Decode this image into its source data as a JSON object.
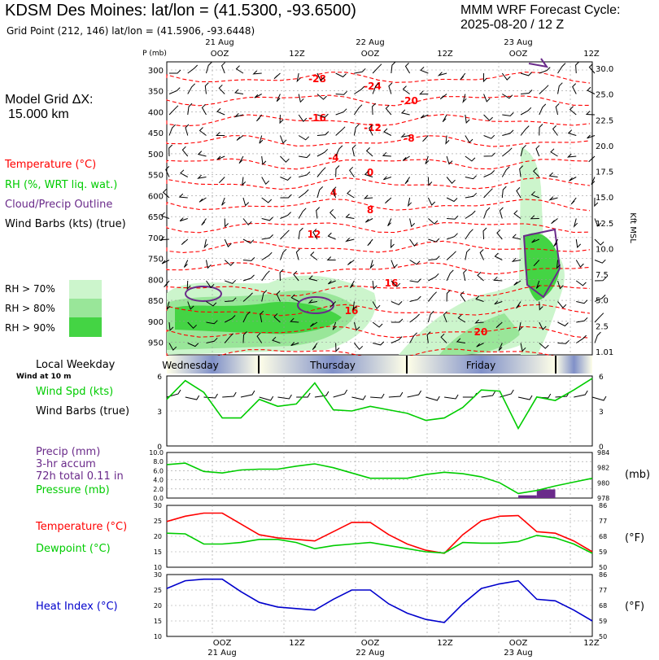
{
  "header": {
    "station": "KDSM Des Moines:  lat/lon = (41.5300, -93.6500)",
    "grid_point": "Grid Point (212, 146) lat/lon = (41.5906, -93.6448)",
    "model_cycle_line1": "MMM WRF Forecast Cycle:",
    "model_cycle_line2": "2025-08-20 / 12  Z"
  },
  "sidebar": {
    "grid_dx_label": "Model Grid ΔX:",
    "grid_dx_value": "15.000 km",
    "legend_temperature": "Temperature (°C)",
    "legend_rh": "RH (%, WRT liq. wat.)",
    "legend_cloud": "Cloud/Precip Outline",
    "legend_wind": "Wind Barbs (kts) (true)",
    "rh_70": "RH > 70%",
    "rh_80": "RH > 80%",
    "rh_90": "RH > 90%",
    "local_weekday": "Local Weekday",
    "wind_at_10m": "Wind at 10 m",
    "wind_spd_label": "Wind Spd (kts)",
    "wind_barbs_label": "Wind Barbs (true)",
    "precip_label": "Precip (mm)",
    "precip_accum": "3-hr accum",
    "precip_total": "72h total 0.11 in",
    "pressure_label": "Pressure (mb)",
    "temp_label": "Temperature (°C)",
    "dewpoint_label": "Dewpoint (°C)",
    "heat_index_label": "Heat Index (°C)",
    "mb_right": "(mb)",
    "degf_right_1": "(°F)",
    "degf_right_2": "(°F)"
  },
  "colors": {
    "temperature": "#ff0000",
    "rh_text": "#00cc00",
    "cloud": "#6a2a8a",
    "heat_index": "#0000cc",
    "rh70": "#ccf5cc",
    "rh80": "#99e699",
    "rh90": "#44d444",
    "precip_bar": "#6a2a8a"
  },
  "chart_data": [
    {
      "type": "heatmap",
      "panel": "cross-section",
      "p_label": "P (mb)",
      "alt_label": "Kft MSL",
      "top_time_labels": [
        "21 Aug",
        "OOZ",
        "12Z",
        "22 Aug",
        "OOZ",
        "12Z",
        "23 Aug",
        "OOZ",
        "12Z"
      ],
      "pressure_ticks": [
        "300",
        "350",
        "400",
        "450",
        "500",
        "550",
        "600",
        "650",
        "700",
        "750",
        "800",
        "850",
        "900",
        "950"
      ],
      "altitude_ticks": [
        "30.0",
        "25.0",
        "22.5",
        "20.0",
        "17.5",
        "15.0",
        "12.5",
        "10.0",
        "7.5",
        "5.0",
        "2.5",
        "1.01"
      ],
      "temperature_contour_labels": [
        "-28",
        "-24",
        "-20",
        "-16",
        "-12",
        "-8",
        "-4",
        "0",
        "4",
        "8",
        "12",
        "16",
        "16",
        "20"
      ],
      "weekday_labels": [
        "Wednesday",
        "Thursday",
        "Friday"
      ]
    },
    {
      "type": "line",
      "panel": "wind-speed",
      "ylim": [
        0,
        6
      ],
      "ticks": [
        "6",
        "3",
        "0"
      ],
      "values": [
        4.0,
        5.6,
        4.6,
        2.4,
        2.4,
        4.0,
        3.4,
        3.6,
        5.4,
        3.1,
        3.0,
        3.4,
        3.1,
        2.8,
        2.2,
        2.4,
        3.3,
        4.8,
        4.7,
        1.5,
        4.2,
        3.9,
        4.8,
        5.8
      ]
    },
    {
      "type": "line",
      "panel": "precip-pressure",
      "left_ticks": [
        "10.0",
        "8.0",
        "6.0",
        "4.0",
        "2.0",
        "0.0"
      ],
      "right_ticks": [
        "984",
        "982",
        "980",
        "978"
      ],
      "pressure_ylim": [
        978,
        984
      ],
      "pressure_mb": [
        982.4,
        982.6,
        981.5,
        981.3,
        981.7,
        981.8,
        981.8,
        982.2,
        982.5,
        982.0,
        981.3,
        980.6,
        980.6,
        980.6,
        981.1,
        981.4,
        981.2,
        980.8,
        980.0,
        978.6,
        979.0,
        979.6,
        980.1,
        980.6
      ],
      "precip_mm": [
        0,
        0,
        0,
        0,
        0,
        0,
        0,
        0,
        0,
        0,
        0,
        0,
        0,
        0,
        0,
        0,
        0,
        0,
        0,
        0.6,
        1.9,
        0,
        0,
        0
      ]
    },
    {
      "type": "line",
      "panel": "temperature-dewpoint",
      "left_ticks": [
        "30",
        "25",
        "20",
        "15",
        "10"
      ],
      "right_ticks": [
        "86",
        "77",
        "68",
        "59",
        "50"
      ],
      "ylim": [
        10,
        30
      ],
      "temperature_c": [
        24.8,
        26.5,
        27.5,
        27.5,
        24.0,
        20.5,
        19.5,
        19.0,
        18.5,
        21.5,
        24.5,
        24.5,
        20.5,
        17.5,
        15.5,
        14.5,
        20.5,
        25.0,
        26.5,
        26.7,
        21.5,
        21.0,
        18.5,
        15.0
      ],
      "dewpoint_c": [
        21.0,
        20.8,
        17.5,
        17.5,
        18.0,
        19.0,
        19.0,
        18.0,
        16.0,
        17.0,
        17.5,
        18.0,
        17.0,
        16.0,
        15.0,
        14.6,
        18.0,
        17.8,
        17.8,
        18.3,
        20.3,
        19.5,
        17.5,
        14.5
      ]
    },
    {
      "type": "line",
      "panel": "heat-index",
      "left_ticks": [
        "30",
        "25",
        "20",
        "15",
        "10"
      ],
      "right_ticks": [
        "86",
        "77",
        "68",
        "59",
        "50"
      ],
      "ylim": [
        10,
        30
      ],
      "bottom_time_labels": [
        "OOZ",
        "12Z",
        "OOZ",
        "12Z",
        "OOZ",
        "12Z"
      ],
      "bottom_date_labels": [
        "21 Aug",
        "22 Aug",
        "23 Aug"
      ],
      "heat_index_c": [
        25.5,
        28.0,
        28.5,
        28.5,
        24.5,
        21.0,
        19.5,
        19.0,
        18.5,
        22.0,
        25.0,
        25.0,
        20.5,
        17.5,
        15.5,
        14.5,
        20.5,
        25.5,
        27.0,
        28.0,
        22.0,
        21.5,
        18.5,
        15.0
      ]
    }
  ]
}
